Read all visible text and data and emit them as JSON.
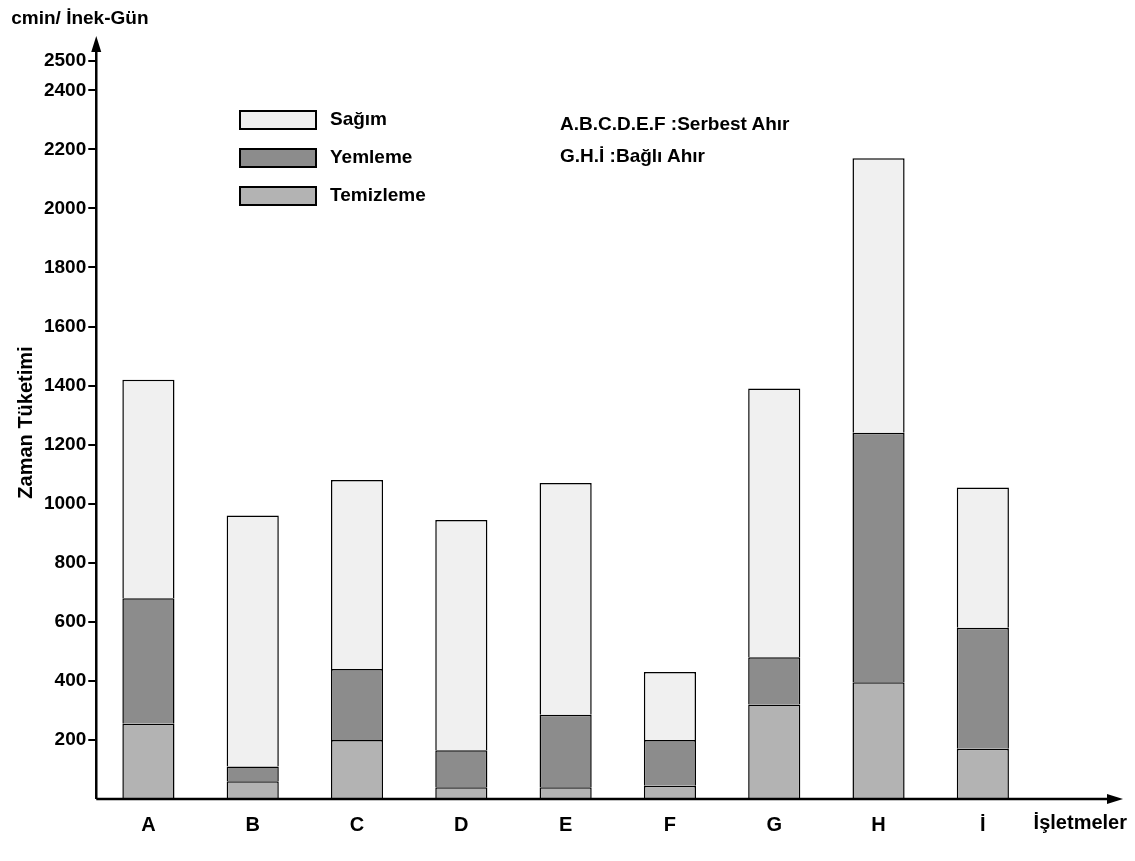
{
  "chart_data": {
    "type": "bar",
    "stacked": true,
    "xlabel": "İşletmeler",
    "ylabel": "Zaman Tüketimi",
    "annotations": [
      "cmin/ İnek-Gün",
      "A.B.C.D.E.F :Serbest Ahır",
      "G.H.İ :Bağlı Ahır"
    ],
    "categories": [
      "A",
      "B",
      "C",
      "D",
      "E",
      "F",
      "G",
      "H",
      "İ"
    ],
    "series": [
      {
        "name": "Temizleme",
        "color": "#b3b3b3",
        "values": [
          255,
          60,
          200,
          40,
          40,
          45,
          320,
          395,
          170
        ]
      },
      {
        "name": "Yemleme",
        "color": "#8c8c8c",
        "values": [
          425,
          50,
          240,
          125,
          245,
          155,
          160,
          845,
          410
        ]
      },
      {
        "name": "Sağım",
        "color": "#f0f0f0",
        "values": [
          740,
          850,
          640,
          780,
          785,
          230,
          910,
          930,
          475
        ]
      }
    ],
    "ylim": [
      0,
      2550
    ],
    "yticks": [
      200,
      400,
      600,
      800,
      1000,
      1200,
      1400,
      1600,
      1800,
      2000,
      2200,
      2400,
      2500
    ],
    "legend": "top left"
  }
}
